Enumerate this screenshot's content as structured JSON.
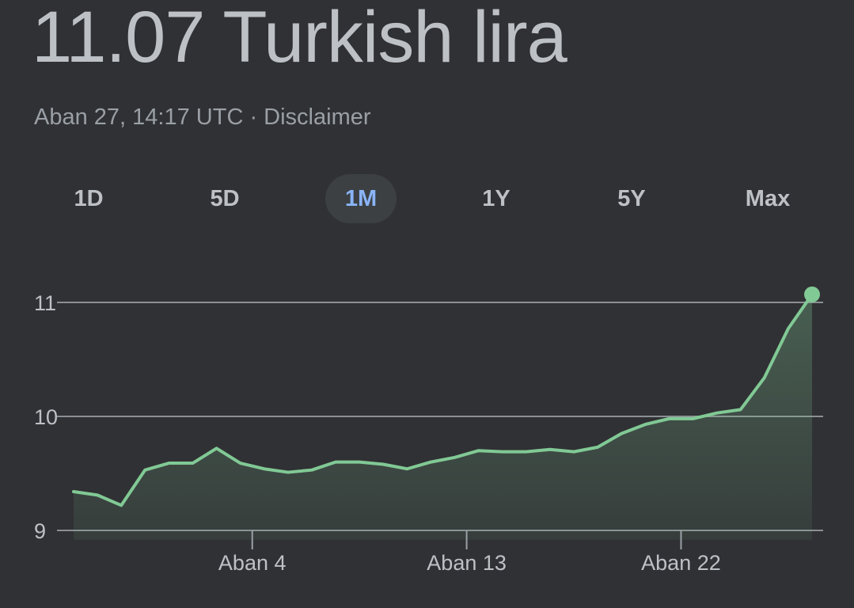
{
  "header": {
    "price_value": "11.07",
    "currency_name": "Turkish lira",
    "timestamp": "Aban 27, 14:17 UTC",
    "separator": " · ",
    "disclaimer_label": "Disclaimer"
  },
  "ranges": {
    "items": [
      {
        "label": "1D",
        "active": false
      },
      {
        "label": "5D",
        "active": false
      },
      {
        "label": "1M",
        "active": true
      },
      {
        "label": "1Y",
        "active": false
      },
      {
        "label": "5Y",
        "active": false
      },
      {
        "label": "Max",
        "active": false
      }
    ]
  },
  "colors": {
    "background": "#303134",
    "line": "#81c995",
    "active_tab_text": "#8ab4f8",
    "active_tab_bg": "#3c4043",
    "gridline": "#9aa0a6",
    "text": "#bdc1c6"
  },
  "chart_data": {
    "type": "area",
    "ylim": [
      9,
      11
    ],
    "y_ticks": [
      "9",
      "10",
      "11"
    ],
    "y_tick_values": [
      9,
      10,
      11
    ],
    "x_ticks": [
      "Aban 4",
      "Aban 13",
      "Aban 22"
    ],
    "x_tick_index": [
      7.5,
      16.5,
      25.5
    ],
    "grid": true,
    "values": [
      9.34,
      9.31,
      9.22,
      9.53,
      9.59,
      9.59,
      9.72,
      9.59,
      9.54,
      9.51,
      9.53,
      9.6,
      9.6,
      9.58,
      9.54,
      9.6,
      9.64,
      9.7,
      9.69,
      9.69,
      9.71,
      9.69,
      9.73,
      9.85,
      9.93,
      9.98,
      9.98,
      10.03,
      10.06,
      10.34,
      10.77,
      11.07
    ],
    "last_value": 11.07
  }
}
